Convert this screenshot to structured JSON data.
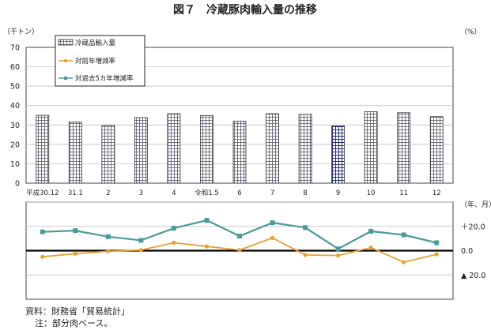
{
  "chart_data": {
    "type": "bar",
    "title": "図７　冷蔵豚肉輸入量の推移",
    "left_unit": "（千トン）",
    "right_unit": "（%）",
    "x_unit": "（年、月）",
    "categories": [
      "平成30.12",
      "31.1",
      "2",
      "3",
      "4",
      "令和1.5",
      "6",
      "7",
      "8",
      "9",
      "10",
      "11",
      "12"
    ],
    "highlight_index": 9,
    "ylim": [
      0,
      70
    ],
    "yticks": [
      "0",
      "10",
      "20",
      "30",
      "40",
      "50",
      "60",
      "70"
    ],
    "y2lim": [
      -40,
      40
    ],
    "y2ticks": [
      "＋20.0",
      "0.0",
      "▲ 20.0"
    ],
    "legend_position": "top-left",
    "grid": true,
    "series": [
      {
        "name": "冷蔵品輸入量",
        "type": "bar",
        "axis": "left",
        "values": [
          35.0,
          31.5,
          29.8,
          33.8,
          35.8,
          34.8,
          32.0,
          35.8,
          35.5,
          29.5,
          36.8,
          36.3,
          34.3
        ]
      },
      {
        "name": "対前年増減率",
        "type": "line",
        "axis": "right",
        "color": "#e6a030",
        "values": [
          -5.0,
          -2.5,
          -0.5,
          0.5,
          6.5,
          3.5,
          0.5,
          10.5,
          -3.5,
          -4.0,
          2.5,
          -9.5,
          -3.0
        ]
      },
      {
        "name": "対過去5カ年増減率",
        "type": "line",
        "axis": "right",
        "color": "#4a9a9a",
        "values": [
          15.5,
          16.5,
          11.5,
          8.5,
          18.5,
          25.0,
          12.0,
          23.0,
          19.0,
          1.5,
          16.0,
          13.0,
          6.5
        ]
      }
    ]
  },
  "footer": {
    "source": "資料：財務省「貿易統計」",
    "note": "注：部分肉ベース。"
  }
}
